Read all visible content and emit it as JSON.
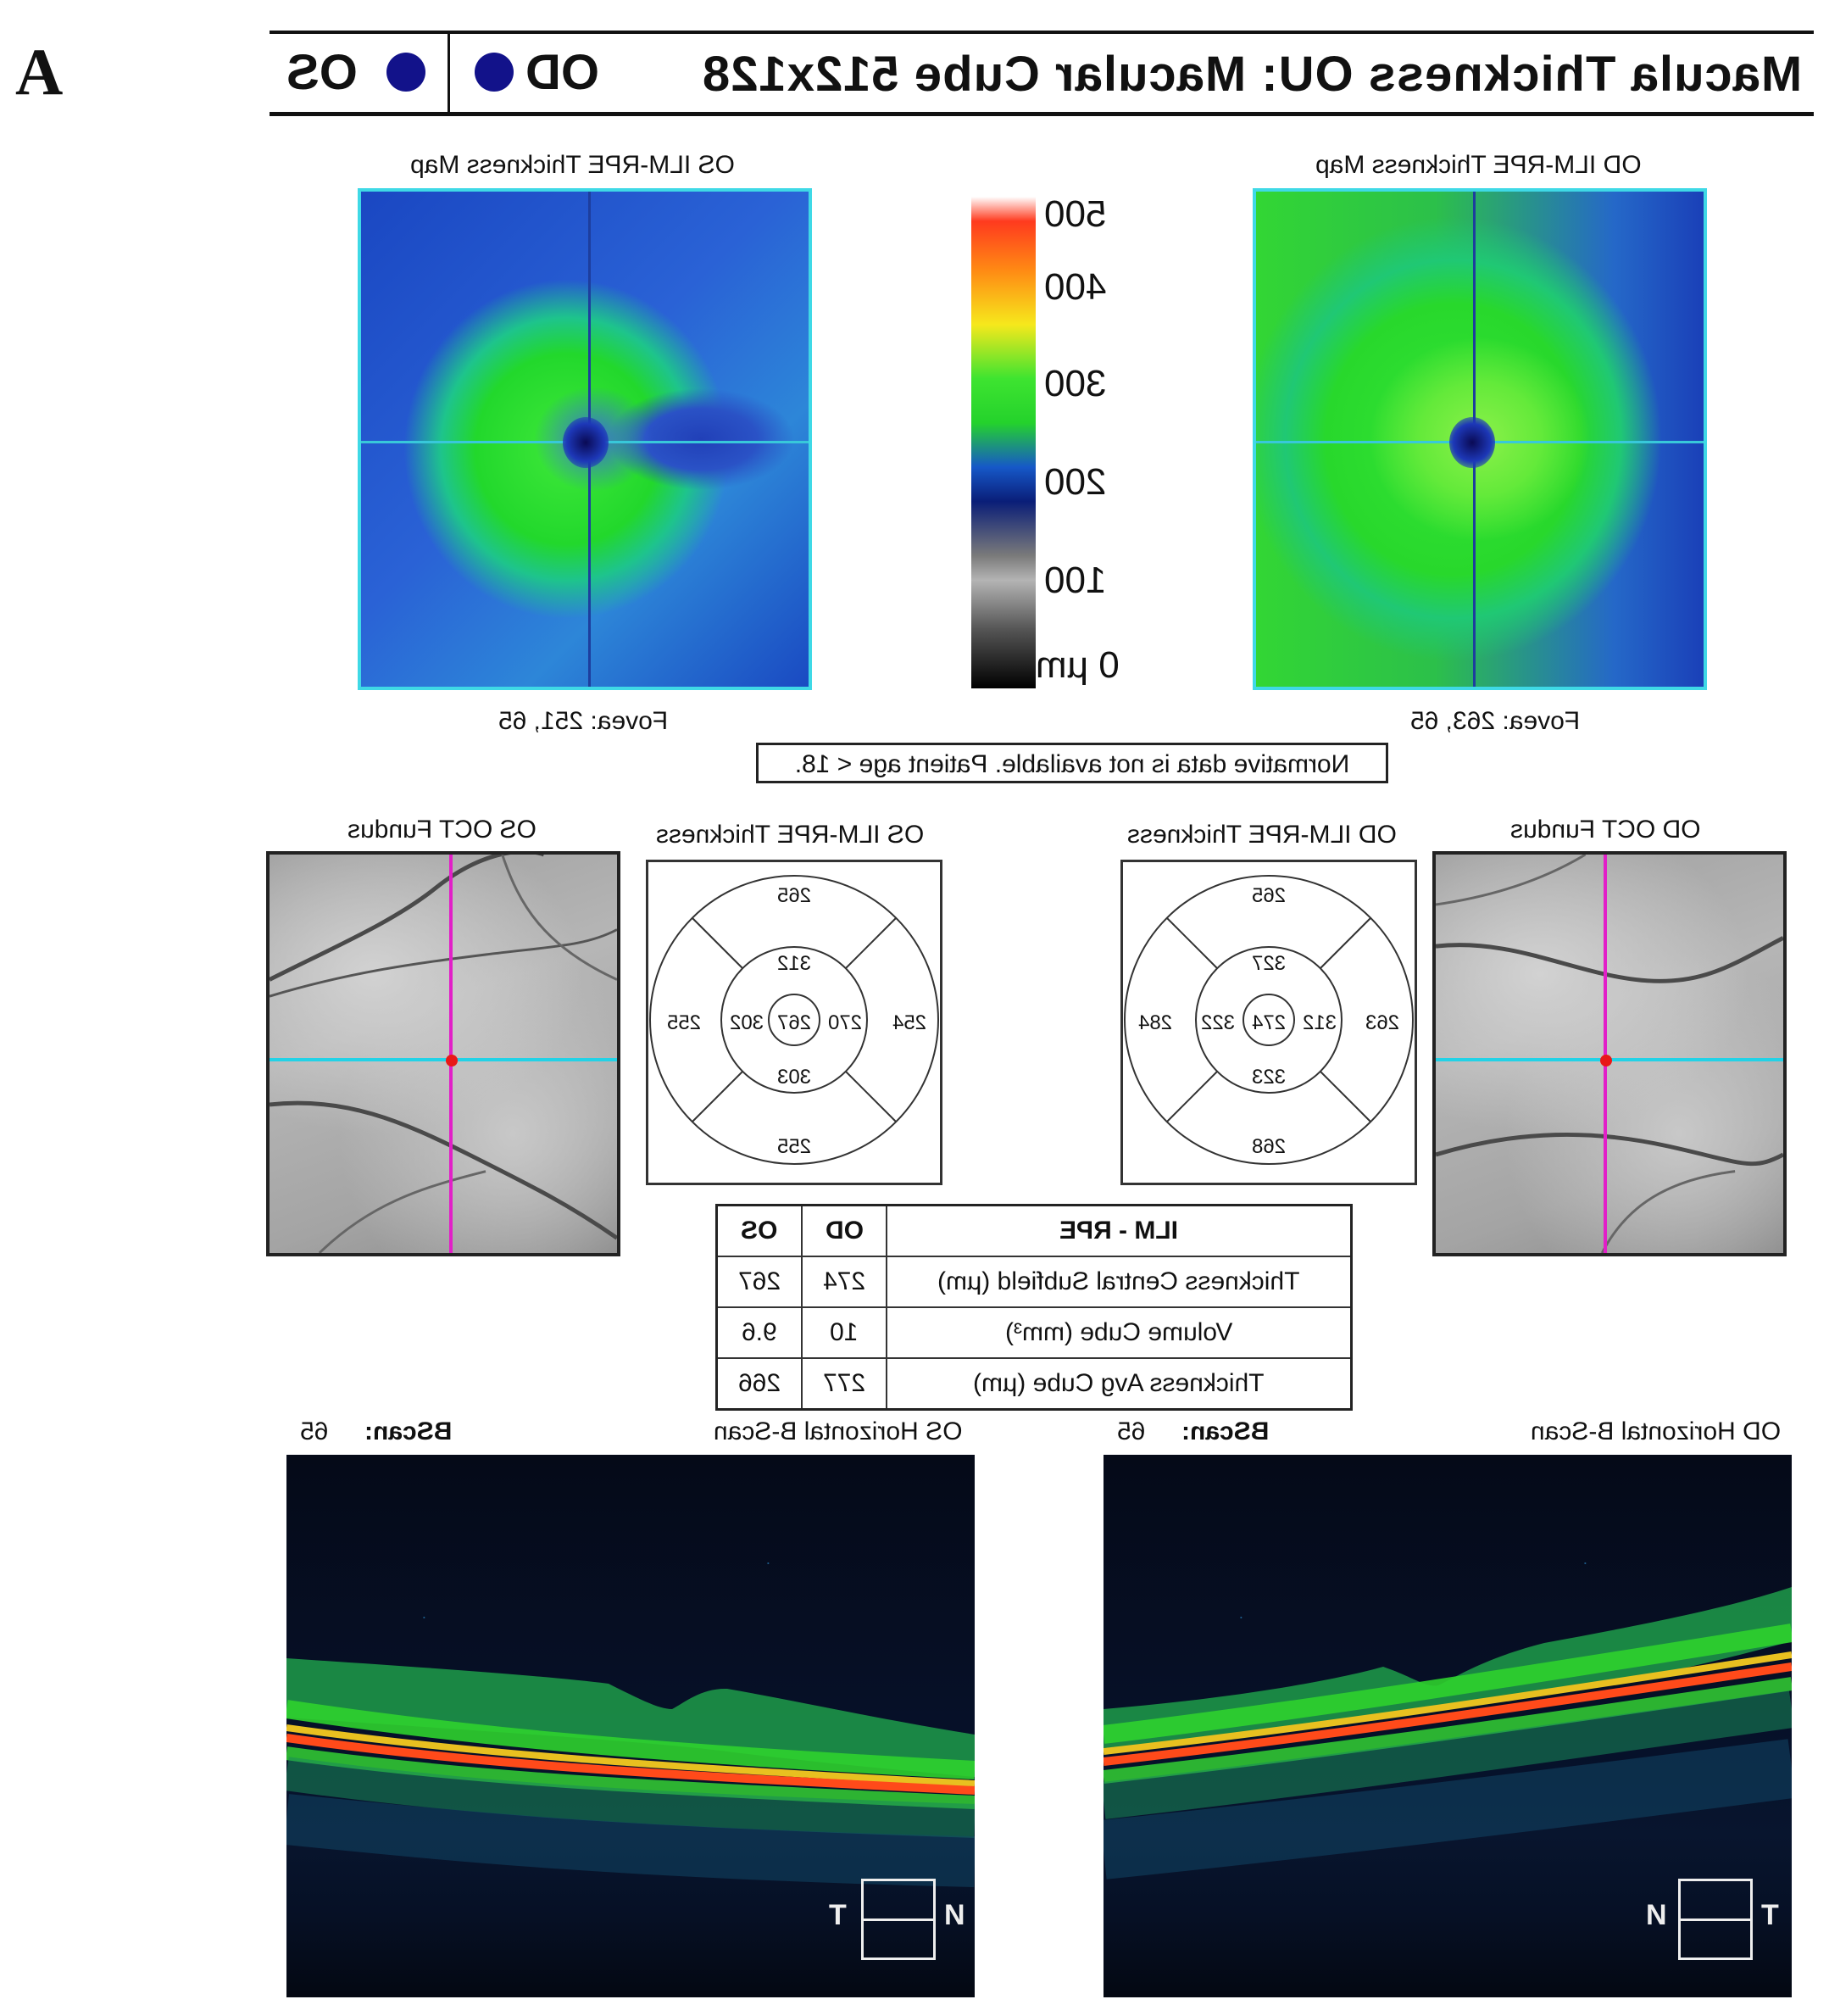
{
  "panel_letter": "A",
  "header": {
    "title": "Macula Thickness OU: Macular Cube 512x128",
    "eye_od": "OD",
    "eye_os": "OS"
  },
  "colorbar": {
    "labels": [
      "500",
      "400",
      "300",
      "200",
      "100",
      "0 µm"
    ]
  },
  "os": {
    "map_title": "OS ILM-RPE Thickness Map",
    "fovea": "Fovea: 251, 65",
    "fundus_title": "OS OCT Fundus",
    "etdrs_title": "OS ILM-RPE Thickness",
    "etdrs": {
      "outer_sup": "265",
      "inner_sup": "312",
      "outer_nasal": "254",
      "inner_nasal": "270",
      "center": "267",
      "inner_temporal": "302",
      "outer_temporal": "255",
      "inner_inf": "303",
      "outer_inf": "255"
    },
    "bscan_title": "OS Horizontal B-Scan",
    "bscan_label": "BScan:",
    "bscan_value": "65",
    "orient_left": "T",
    "orient_right": "N"
  },
  "od": {
    "map_title": "OD ILM-RPE Thickness Map",
    "fovea": "Fovea: 263, 65",
    "fundus_title": "OD OCT Fundus",
    "etdrs_title": "OD ILM-RPE Thickness",
    "etdrs": {
      "outer_sup": "265",
      "inner_sup": "327",
      "outer_nasal": "284",
      "inner_nasal": "322",
      "center": "274",
      "inner_temporal": "312",
      "outer_temporal": "263",
      "inner_inf": "323",
      "outer_inf": "268"
    },
    "bscan_title": "OD Horizontal B-Scan",
    "bscan_label": "BScan:",
    "bscan_value": "65",
    "orient_left": "N",
    "orient_right": "T"
  },
  "normative_note": "Normative data is not available. Patient age < 18.",
  "table": {
    "headers": [
      "ILM - RPE",
      "OD",
      "OS"
    ],
    "rows": [
      [
        "Thickness Central Subfield (µm)",
        "274",
        "267"
      ],
      [
        "Volume Cube (mm³)",
        "10",
        "9.6"
      ],
      [
        "Thickness Avg Cube (µm)",
        "277",
        "266"
      ]
    ]
  }
}
